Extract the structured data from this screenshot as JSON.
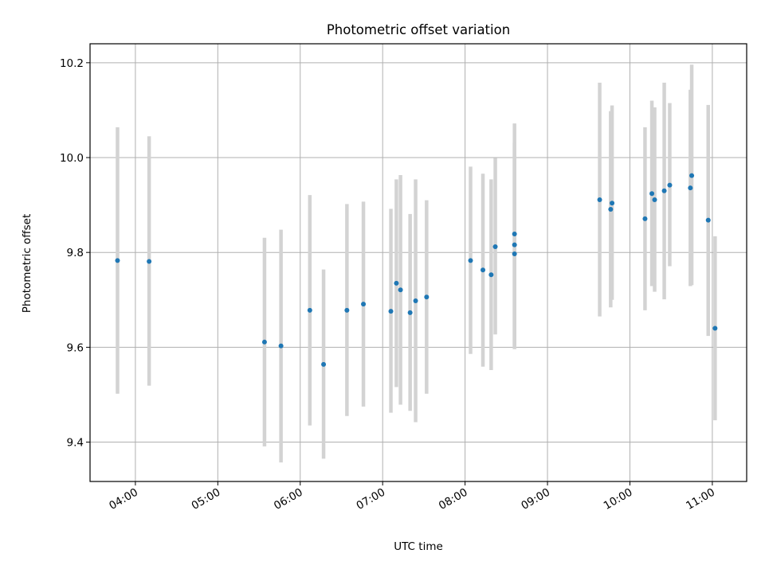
{
  "chart_data": {
    "type": "scatter",
    "title": "Photometric offset variation",
    "xlabel": "UTC time",
    "ylabel": "Photometric offset",
    "xlim": [
      "03:27",
      "11:25"
    ],
    "ylim": [
      9.317,
      10.24
    ],
    "xticks": [
      "04:00",
      "05:00",
      "06:00",
      "07:00",
      "08:00",
      "09:00",
      "10:00",
      "11:00"
    ],
    "yticks": [
      9.4,
      9.6,
      9.8,
      10.0,
      10.2
    ],
    "ytick_labels": [
      "9.4",
      "9.6",
      "9.8",
      "10.0",
      "10.2"
    ],
    "grid": true,
    "colors": {
      "point": "#1f77b4",
      "errorbar": "#d3d3d3",
      "grid": "#b0b0b0"
    },
    "points": [
      {
        "x": "03:47",
        "y": 9.783,
        "lo": 9.502,
        "hi": 10.064
      },
      {
        "x": "04:10",
        "y": 9.781,
        "lo": 9.519,
        "hi": 10.045
      },
      {
        "x": "05:34",
        "y": 9.611,
        "lo": 9.391,
        "hi": 9.831
      },
      {
        "x": "05:46",
        "y": 9.603,
        "lo": 9.357,
        "hi": 9.848
      },
      {
        "x": "06:07",
        "y": 9.678,
        "lo": 9.435,
        "hi": 9.921
      },
      {
        "x": "06:17",
        "y": 9.564,
        "lo": 9.365,
        "hi": 9.764
      },
      {
        "x": "06:34",
        "y": 9.678,
        "lo": 9.455,
        "hi": 9.902
      },
      {
        "x": "06:46",
        "y": 9.691,
        "lo": 9.475,
        "hi": 9.907
      },
      {
        "x": "07:06",
        "y": 9.676,
        "lo": 9.462,
        "hi": 9.892
      },
      {
        "x": "07:10",
        "y": 9.735,
        "lo": 9.516,
        "hi": 9.954
      },
      {
        "x": "07:13",
        "y": 9.721,
        "lo": 9.479,
        "hi": 9.963
      },
      {
        "x": "07:20",
        "y": 9.673,
        "lo": 9.466,
        "hi": 9.881
      },
      {
        "x": "07:24",
        "y": 9.698,
        "lo": 9.442,
        "hi": 9.954
      },
      {
        "x": "07:32",
        "y": 9.706,
        "lo": 9.502,
        "hi": 9.91
      },
      {
        "x": "08:04",
        "y": 9.783,
        "lo": 9.586,
        "hi": 9.981
      },
      {
        "x": "08:13",
        "y": 9.763,
        "lo": 9.559,
        "hi": 9.966
      },
      {
        "x": "08:19",
        "y": 9.753,
        "lo": 9.552,
        "hi": 9.954
      },
      {
        "x": "08:22",
        "y": 9.812,
        "lo": 9.627,
        "hi": 9.999
      },
      {
        "x": "08:36",
        "y": 9.839,
        "lo": 9.604,
        "hi": 10.072
      },
      {
        "x": "08:36",
        "y": 9.816,
        "lo": 9.602,
        "hi": 10.031
      },
      {
        "x": "08:36",
        "y": 9.797,
        "lo": 9.596,
        "hi": 9.998
      },
      {
        "x": "09:38",
        "y": 9.911,
        "lo": 9.665,
        "hi": 10.158
      },
      {
        "x": "09:46",
        "y": 9.891,
        "lo": 9.684,
        "hi": 10.098
      },
      {
        "x": "09:47",
        "y": 9.904,
        "lo": 9.7,
        "hi": 10.11
      },
      {
        "x": "10:11",
        "y": 9.871,
        "lo": 9.678,
        "hi": 10.064
      },
      {
        "x": "10:16",
        "y": 9.924,
        "lo": 9.729,
        "hi": 10.12
      },
      {
        "x": "10:18",
        "y": 9.911,
        "lo": 9.717,
        "hi": 10.106
      },
      {
        "x": "10:25",
        "y": 9.93,
        "lo": 9.701,
        "hi": 10.158
      },
      {
        "x": "10:29",
        "y": 9.942,
        "lo": 9.771,
        "hi": 10.115
      },
      {
        "x": "10:44",
        "y": 9.936,
        "lo": 9.729,
        "hi": 10.143
      },
      {
        "x": "10:45",
        "y": 9.962,
        "lo": 9.731,
        "hi": 10.196
      },
      {
        "x": "10:57",
        "y": 9.868,
        "lo": 9.624,
        "hi": 10.111
      },
      {
        "x": "11:02",
        "y": 9.64,
        "lo": 9.446,
        "hi": 9.834
      }
    ]
  }
}
